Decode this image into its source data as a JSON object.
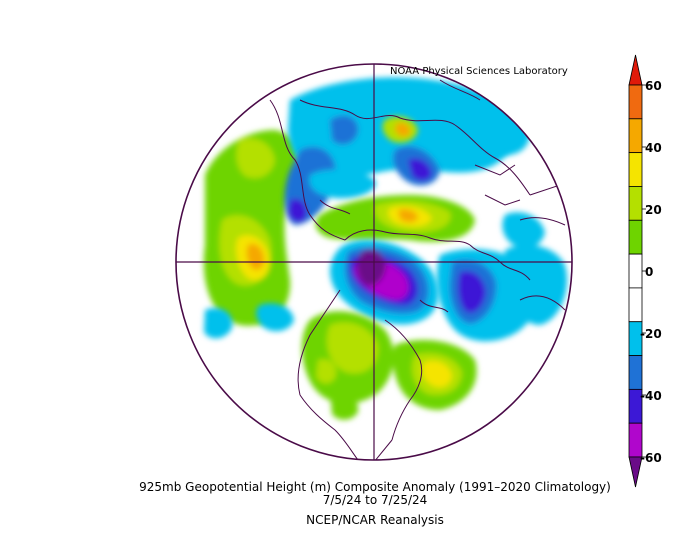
{
  "credit": "NOAA Physical Sciences Laboratory",
  "caption": {
    "line1": "925mb Geopotential Height (m) Composite Anomaly (1991–2020 Climatology)",
    "line2": "7/5/24   to 7/25/24",
    "line3": "NCEP/NCAR Reanalysis"
  },
  "colorbar": {
    "labels": [
      "60",
      "40",
      "20",
      "0",
      "-20",
      "-40",
      "-60"
    ],
    "colors": [
      "#e01a0a",
      "#f06a10",
      "#f5a800",
      "#f5e400",
      "#b4e000",
      "#6ed400",
      "#ffffff",
      "#ffffff",
      "#00c0ec",
      "#1f72d6",
      "#3c18d6",
      "#b006cc",
      "#6a0c88"
    ]
  },
  "map": {
    "projection": "north polar stereographic",
    "line_color": "#4a0b48"
  }
}
